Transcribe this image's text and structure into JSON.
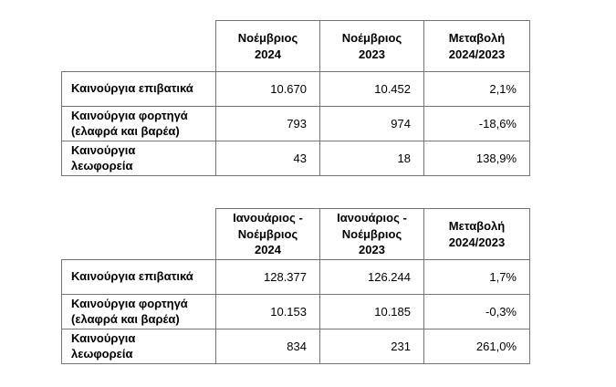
{
  "page": {
    "background": "#ffffff",
    "border_color": "#757575",
    "text_color": "#000000"
  },
  "table_monthly": {
    "headers": [
      "Νοέμβριος\n2024",
      "Νοέμβριος\n2023",
      "Μεταβολή\n2024/2023"
    ],
    "rows": [
      {
        "label": "Καινούργια επιβατικά",
        "current": "10.670",
        "previous": "10.452",
        "change": "2,1%"
      },
      {
        "label": "Καινούργια φορτηγά\n(ελαφρά και βαρέα)",
        "current": "793",
        "previous": "974",
        "change": "-18,6%"
      },
      {
        "label": "Καινούργια\nλεωφορεία",
        "current": "43",
        "previous": "18",
        "change": "138,9%"
      }
    ]
  },
  "table_ytd": {
    "headers": [
      "Ιανουάριος -\nΝοέμβριος\n2024",
      "Ιανουάριος -\nΝοέμβριος\n2023",
      "Μεταβολή\n2024/2023"
    ],
    "rows": [
      {
        "label": "Καινούργια επιβατικά",
        "current": "128.377",
        "previous": "126.244",
        "change": "1,7%"
      },
      {
        "label": "Καινούργια φορτηγά\n(ελαφρά και βαρέα)",
        "current": "10.153",
        "previous": "10.185",
        "change": "-0,3%"
      },
      {
        "label": "Καινούργια\nλεωφορεία",
        "current": "834",
        "previous": "231",
        "change": "261,0%"
      }
    ]
  }
}
